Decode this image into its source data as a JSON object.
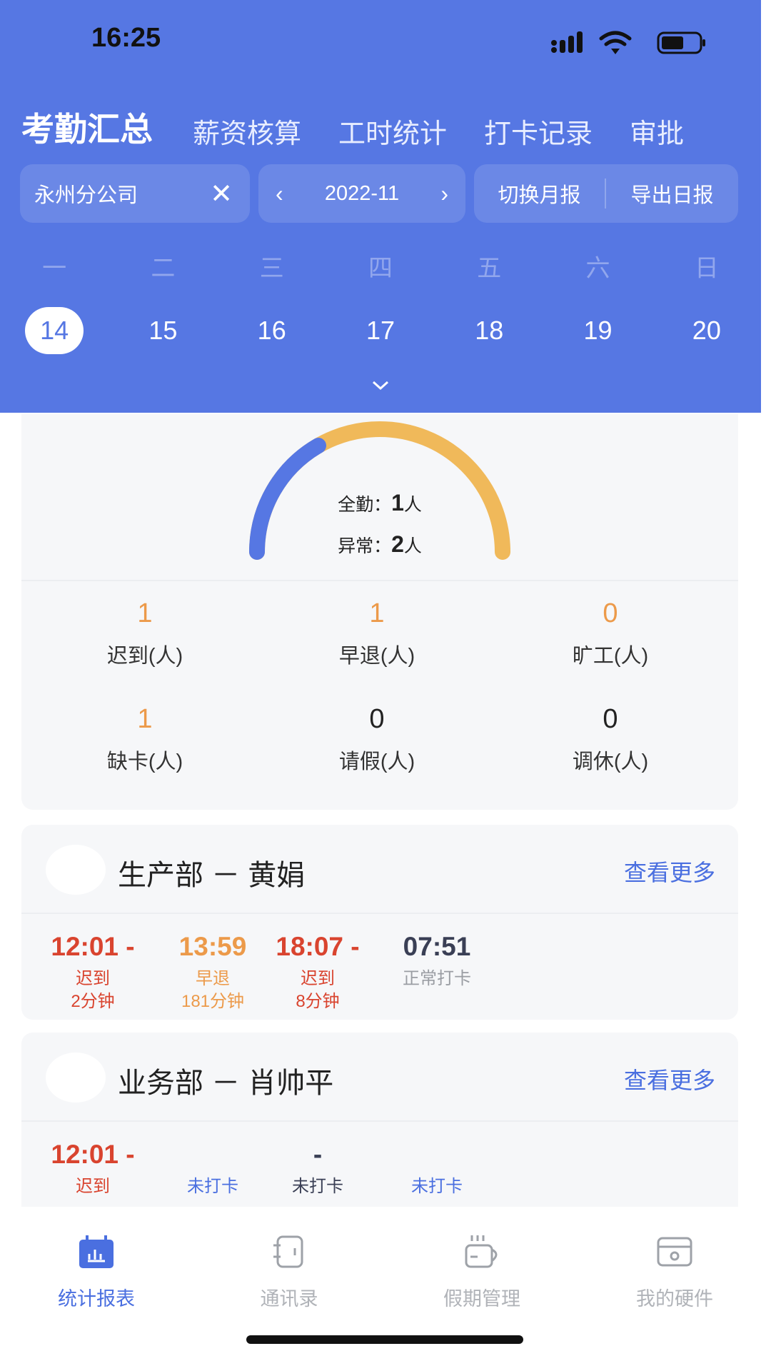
{
  "status_bar": {
    "time": "16:25"
  },
  "tabs": [
    {
      "label": "考勤汇总",
      "active": true
    },
    {
      "label": "薪资核算"
    },
    {
      "label": "工时统计"
    },
    {
      "label": "打卡记录"
    },
    {
      "label": "审批"
    }
  ],
  "filters": {
    "company": "永州分公司",
    "month": "2022-11",
    "switch_monthly": "切换月报",
    "export_daily": "导出日报"
  },
  "weekdays": [
    "一",
    "二",
    "三",
    "四",
    "五",
    "六",
    "日"
  ],
  "dates": [
    "14",
    "15",
    "16",
    "17",
    "18",
    "19",
    "20"
  ],
  "selected_date": "14",
  "gauge": {
    "full_label": "全勤：",
    "full_value": "1",
    "unit": "人",
    "abnormal_label": "异常：",
    "abnormal_value": "2",
    "full_color": "#5677e3",
    "abnormal_color": "#f0b95a"
  },
  "stats": [
    {
      "value": "1",
      "label": "迟到(人)"
    },
    {
      "value": "1",
      "label": "早退(人)"
    },
    {
      "value": "0",
      "label": "旷工(人)"
    },
    {
      "value": "1",
      "label": "缺卡(人)"
    },
    {
      "value": "0",
      "label": "请假(人)"
    },
    {
      "value": "0",
      "label": "调休(人)"
    }
  ],
  "employees": [
    {
      "name": "生产部 － 黄娟",
      "more": "查看更多",
      "punches": [
        {
          "time": "12:01 -",
          "status": "迟到",
          "detail": "2分钟",
          "color": "#d9442f"
        },
        {
          "time": "13:59",
          "status": "早退",
          "detail": "181分钟",
          "color": "#ec9a4a"
        },
        {
          "time": "18:07 -",
          "status": "迟到",
          "detail": "8分钟",
          "color": "#d9442f"
        },
        {
          "time": "07:51",
          "status": "正常打卡",
          "detail": "",
          "color": "#3a3f55"
        }
      ]
    },
    {
      "name": "业务部 － 肖帅平",
      "more": "查看更多",
      "punches": [
        {
          "time": "12:01 -",
          "status": "迟到",
          "detail": "",
          "color": "#d9442f"
        },
        {
          "time": "",
          "status": "未打卡",
          "detail": "",
          "color": "#4a6fe0"
        },
        {
          "time": "-",
          "status": "未打卡",
          "detail": "",
          "color": "#3a3f55"
        },
        {
          "time": "",
          "status": "未打卡",
          "detail": "",
          "color": "#4a6fe0"
        }
      ]
    }
  ],
  "bottom_nav": [
    {
      "label": "统计报表",
      "icon": "calendar-chart-icon",
      "active": true
    },
    {
      "label": "通讯录",
      "icon": "contacts-book-icon"
    },
    {
      "label": "假期管理",
      "icon": "coffee-cup-icon"
    },
    {
      "label": "我的硬件",
      "icon": "device-icon"
    }
  ]
}
